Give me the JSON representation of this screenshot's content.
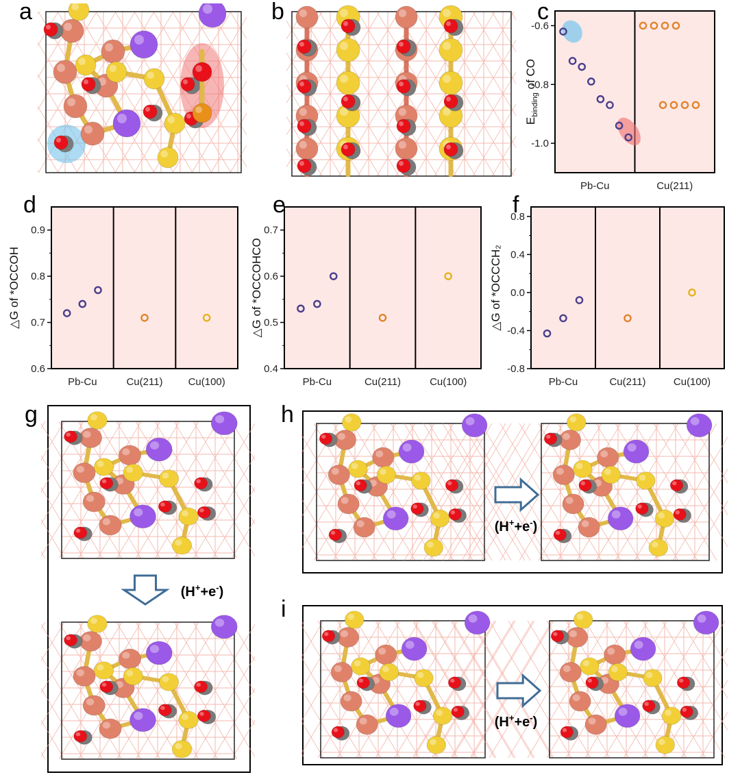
{
  "panels": {
    "a": "a",
    "b": "b",
    "c": "c",
    "d": "d",
    "e": "e",
    "f": "f",
    "g": "g",
    "h": "h",
    "i": "i"
  },
  "reaction_label": {
    "main": "(H",
    "sup1": "+",
    "mid": "+e",
    "sup2": "-",
    "end": ")"
  },
  "colors": {
    "cu": "#e0826a",
    "pb": "#9b59e8",
    "s": "#f2cf36",
    "o": "#e8111a",
    "c": "#7a7a7a",
    "h": "#ffffff",
    "lattice": "#f0a092",
    "panel_bg": "#fde8e6",
    "pbcu_point": "#4a3f8c",
    "cu211_point": "#e2832a",
    "cu100_point": "#e6b21d",
    "arrow": "#3f6c96",
    "blue_highlight": "#7fc8ec",
    "red_highlight": "#ef6e6e"
  },
  "chart_data": [
    {
      "id": "c",
      "type": "scatter",
      "ylabel": "E_binding of CO",
      "ylabel_main": "E",
      "ylabel_sub": "binding",
      "ylabel_tail": " of CO",
      "ylim": [
        -1.1,
        -0.55
      ],
      "yticks": [
        "-0.6",
        "-0.8",
        "-1.0"
      ],
      "ytick_values": [
        -0.6,
        -0.8,
        -1.0
      ],
      "categories": [
        "Pb-Cu",
        "Cu(211)"
      ],
      "series": [
        {
          "group": "Pb-Cu",
          "values": [
            -0.62,
            -0.72,
            -0.74,
            -0.79,
            -0.85,
            -0.87,
            -0.94,
            -0.98
          ]
        },
        {
          "group": "Cu(211)",
          "values": [
            -0.6,
            -0.6,
            -0.6,
            -0.6,
            -0.87,
            -0.87,
            -0.87,
            -0.87
          ]
        }
      ]
    },
    {
      "id": "d",
      "type": "scatter",
      "ylabel": "△G of *OCCOH",
      "ylim": [
        0.6,
        0.95
      ],
      "yticks": [
        "0.6",
        "0.7",
        "0.8",
        "0.9"
      ],
      "ytick_values": [
        0.6,
        0.7,
        0.8,
        0.9
      ],
      "categories": [
        "Pb-Cu",
        "Cu(211)",
        "Cu(100)"
      ],
      "series": [
        {
          "group": "Pb-Cu",
          "values": [
            0.72,
            0.74,
            0.77
          ]
        },
        {
          "group": "Cu(211)",
          "values": [
            0.71
          ]
        },
        {
          "group": "Cu(100)",
          "values": [
            0.71
          ]
        }
      ]
    },
    {
      "id": "e",
      "type": "scatter",
      "ylabel": "△G of *OCCOHCO",
      "ylim": [
        0.4,
        0.75
      ],
      "yticks": [
        "0.4",
        "0.5",
        "0.6",
        "0.7"
      ],
      "ytick_values": [
        0.4,
        0.5,
        0.6,
        0.7
      ],
      "categories": [
        "Pb-Cu",
        "Cu(211)",
        "Cu(100)"
      ],
      "series": [
        {
          "group": "Pb-Cu",
          "values": [
            0.53,
            0.54,
            0.6
          ]
        },
        {
          "group": "Cu(211)",
          "values": [
            0.51
          ]
        },
        {
          "group": "Cu(100)",
          "values": [
            0.6
          ]
        }
      ]
    },
    {
      "id": "f",
      "type": "scatter",
      "ylabel": "△G of *OCCCH₂",
      "ylim": [
        -0.8,
        0.9
      ],
      "yticks": [
        "-0.8",
        "-0.4",
        "0.0",
        "0.4",
        "0.8"
      ],
      "ytick_values": [
        -0.8,
        -0.4,
        0.0,
        0.4,
        0.8
      ],
      "categories": [
        "Pb-Cu",
        "Cu(211)",
        "Cu(100)"
      ],
      "series": [
        {
          "group": "Pb-Cu",
          "values": [
            -0.43,
            -0.27,
            -0.08
          ]
        },
        {
          "group": "Cu(211)",
          "values": [
            -0.27
          ]
        },
        {
          "group": "Cu(100)",
          "values": [
            0.0
          ]
        }
      ]
    }
  ]
}
